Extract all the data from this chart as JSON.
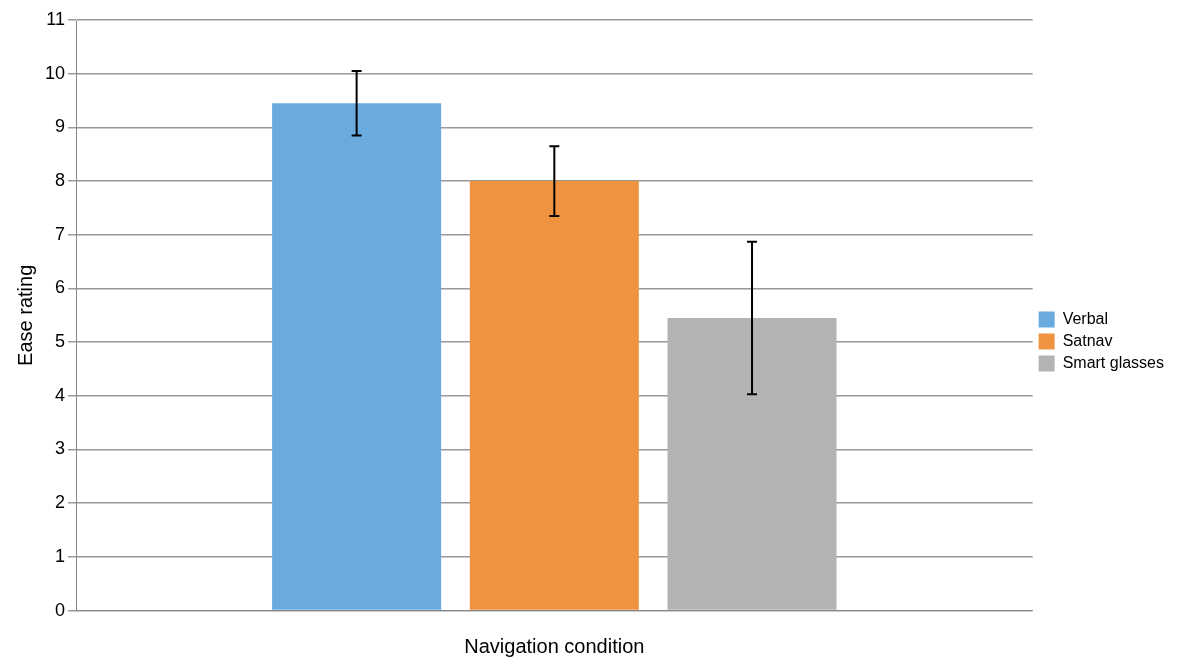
{
  "chart_data": {
    "type": "bar",
    "xlabel": "Navigation condition",
    "ylabel": "Ease rating",
    "categories": [
      null
    ],
    "series": [
      {
        "name": "Verbal",
        "color": "#6aabdf",
        "values": [
          9.45
        ],
        "errors": [
          0.6
        ]
      },
      {
        "name": "Satnav",
        "color": "#f09341",
        "values": [
          8.0
        ],
        "errors": [
          0.65
        ]
      },
      {
        "name": "Smart glasses",
        "color": "#b3b3b3",
        "values": [
          5.45
        ],
        "errors": [
          1.42
        ]
      }
    ],
    "ylim": [
      0,
      11
    ],
    "yticks": [
      0,
      1,
      2,
      3,
      4,
      5,
      6,
      7,
      8,
      9,
      10,
      11
    ],
    "grid": "y",
    "legend": "right"
  }
}
